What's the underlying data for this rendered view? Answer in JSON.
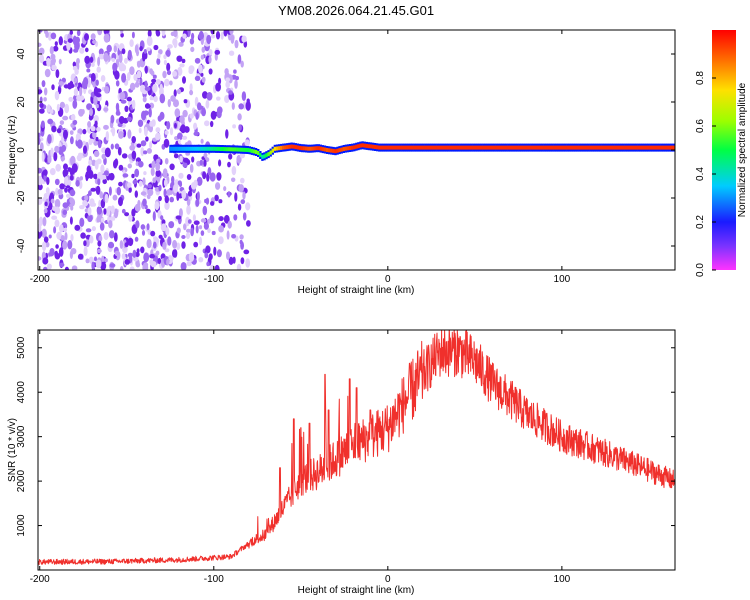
{
  "title": "YM08.2026.064.21.45.G01",
  "chart_data": [
    {
      "type": "heatmap",
      "xlabel": "Height of straight line (km)",
      "ylabel": "Frequency (Hz)",
      "xlim": [
        -201,
        165
      ],
      "ylim": [
        -50,
        50
      ],
      "xticks": [
        -200,
        -100,
        0,
        100
      ],
      "xtick_labels": [
        "-200",
        "-100",
        "0",
        "100"
      ],
      "yticks": [
        -40,
        -20,
        0,
        20,
        40
      ],
      "ytick_labels": [
        "-40",
        "-20",
        "0",
        "20",
        "40"
      ],
      "colorbar": {
        "label": "Normalized spectral amplitude",
        "range": [
          0,
          1
        ],
        "ticks": [
          0.0,
          0.2,
          0.4,
          0.6,
          0.8
        ],
        "tick_labels": [
          "0.0",
          "0.2",
          "0.4",
          "0.6",
          "0.8"
        ]
      },
      "noise_region_x": [
        -201,
        -80
      ],
      "trace": {
        "x": [
          -125,
          -110,
          -100,
          -90,
          -80,
          -75,
          -72,
          -68,
          -65,
          -60,
          -55,
          -50,
          -45,
          -40,
          -35,
          -30,
          -25,
          -20,
          -15,
          -10,
          -5,
          0,
          20,
          40,
          60,
          80,
          100,
          120,
          140,
          165
        ],
        "freq": [
          0.5,
          0.5,
          0.5,
          0.3,
          0.0,
          -1.0,
          -3.0,
          -1.5,
          0.5,
          1.0,
          1.5,
          0.8,
          0.5,
          0.8,
          0.0,
          -0.5,
          0.5,
          1.0,
          2.0,
          1.5,
          1.0,
          1.0,
          1.0,
          1.0,
          1.0,
          1.0,
          1.0,
          1.0,
          1.0,
          1.0
        ],
        "amplitude": [
          0.3,
          0.35,
          0.45,
          0.55,
          0.5,
          0.6,
          0.4,
          0.6,
          0.75,
          0.9,
          0.95,
          0.95,
          0.9,
          0.95,
          0.9,
          0.95,
          0.9,
          0.95,
          0.95,
          0.95,
          0.95,
          0.95,
          0.95,
          0.95,
          0.95,
          0.95,
          0.95,
          0.95,
          0.95,
          0.95
        ]
      }
    },
    {
      "type": "line",
      "xlabel": "Height of straight line (km)",
      "ylabel": "SNR (10 * v/v)",
      "xlim": [
        -201,
        165
      ],
      "ylim": [
        0,
        5400
      ],
      "xticks": [
        -200,
        -100,
        0,
        100
      ],
      "xtick_labels": [
        "-200",
        "-100",
        "0",
        "100"
      ],
      "yticks": [
        1000,
        2000,
        3000,
        4000,
        5000
      ],
      "ytick_labels": [
        "1000",
        "2000",
        "3000",
        "4000",
        "5000"
      ],
      "color": "#f0302c",
      "envelope": {
        "x": [
          -201,
          -160,
          -120,
          -90,
          -85,
          -78,
          -70,
          -60,
          -50,
          -40,
          -30,
          -20,
          -10,
          0,
          10,
          20,
          30,
          40,
          50,
          60,
          80,
          100,
          120,
          140,
          165
        ],
        "y": [
          180,
          190,
          230,
          300,
          450,
          650,
          800,
          1400,
          2000,
          2200,
          2500,
          2800,
          3000,
          3200,
          3800,
          4400,
          4900,
          4950,
          4700,
          4200,
          3500,
          3000,
          2700,
          2400,
          2000
        ]
      },
      "spikes": [
        {
          "x": -62,
          "y": 2300
        },
        {
          "x": -54,
          "y": 3400
        },
        {
          "x": -50,
          "y": 3200
        },
        {
          "x": -45,
          "y": 3300
        },
        {
          "x": -36,
          "y": 4400
        },
        {
          "x": -34,
          "y": 3600
        },
        {
          "x": -28,
          "y": 3500
        },
        {
          "x": -22,
          "y": 4300
        },
        {
          "x": -18,
          "y": 4100
        },
        {
          "x": -10,
          "y": 3600
        }
      ]
    }
  ]
}
